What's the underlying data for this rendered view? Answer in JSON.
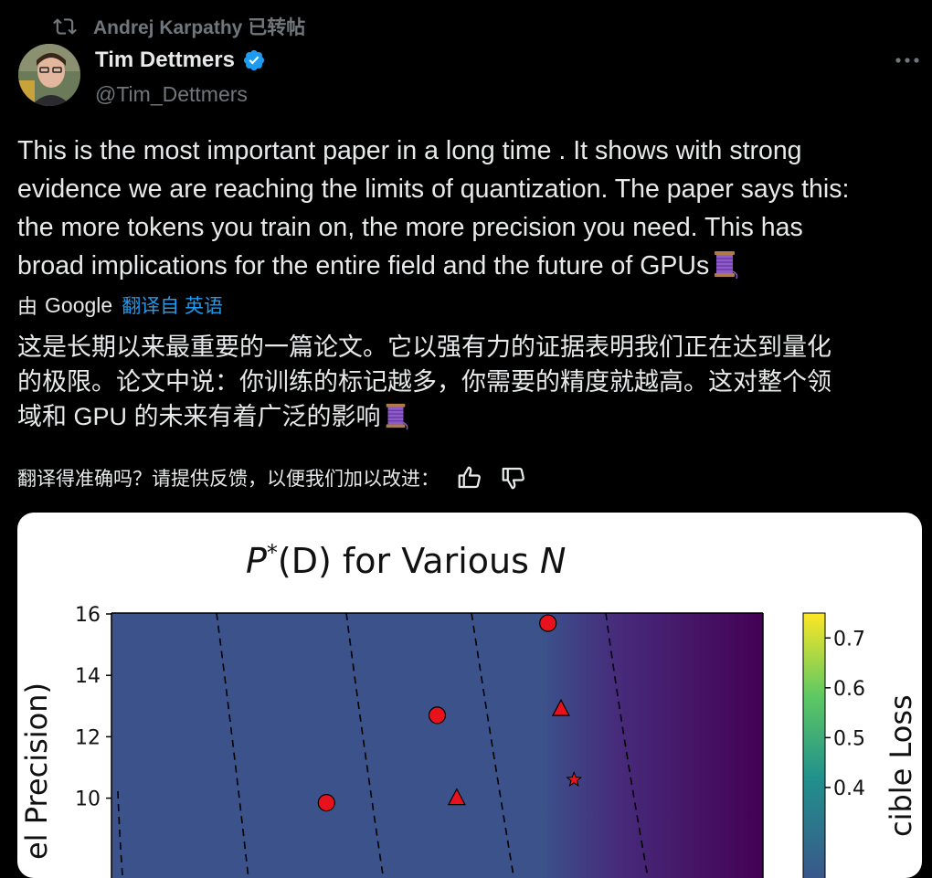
{
  "retweet": {
    "text": "Andrej Karpathy 已转帖",
    "icon": "repost-icon"
  },
  "author": {
    "display_name": "Tim Dettmers",
    "handle": "@Tim_Dettmers",
    "verified": true,
    "verified_color": "#1d9bf0"
  },
  "tweet": {
    "lines": [
      "This is the most important paper in a long time . It shows with strong",
      "evidence we are reaching the limits of quantization. The paper says this:",
      "the more tokens you train on, the more precision you need. This has",
      "broad implications for the entire field and the future of GPUs"
    ],
    "emoji": "spool-of-thread"
  },
  "translation": {
    "by_label": "由",
    "provider": "Google",
    "link_label": "翻译自 英语",
    "lines": [
      "这是长期以来最重要的一篇论文。它以强有力的证据表明我们正在达到量化",
      "的极限。论文中说：你训练的标记越多，你需要的精度就越高。这对整个领",
      "域和 GPU 的未来有着广泛的影响"
    ],
    "feedback_prompt": "翻译得准确吗？请提供反馈，以便我们加以改进："
  },
  "chart_data": {
    "type": "heatmap",
    "title_parts": {
      "p": "P",
      "star": "*",
      "mid": "(D) for Various ",
      "n": "N"
    },
    "ylabel": "el Precision)",
    "colorbar_label": "cible Loss",
    "y_ticks": [
      10,
      12,
      14,
      16
    ],
    "colorbar_ticks": [
      "0.7",
      "0.6",
      "0.5",
      "0.4"
    ],
    "ylim": [
      8,
      16
    ],
    "colorbar_range": [
      0.2,
      0.75
    ],
    "colors": {
      "background": "#3b528b",
      "right": "#440154",
      "marker": "#e8121c"
    },
    "markers": [
      {
        "shape": "circle",
        "x": 0.67,
        "y": 15.7
      },
      {
        "shape": "circle",
        "x": 0.5,
        "y": 12.7
      },
      {
        "shape": "triangle",
        "x": 0.69,
        "y": 12.9
      },
      {
        "shape": "star",
        "x": 0.71,
        "y": 10.6
      },
      {
        "shape": "circle",
        "x": 0.33,
        "y": 9.85
      },
      {
        "shape": "triangle",
        "x": 0.53,
        "y": 10.0
      }
    ]
  }
}
